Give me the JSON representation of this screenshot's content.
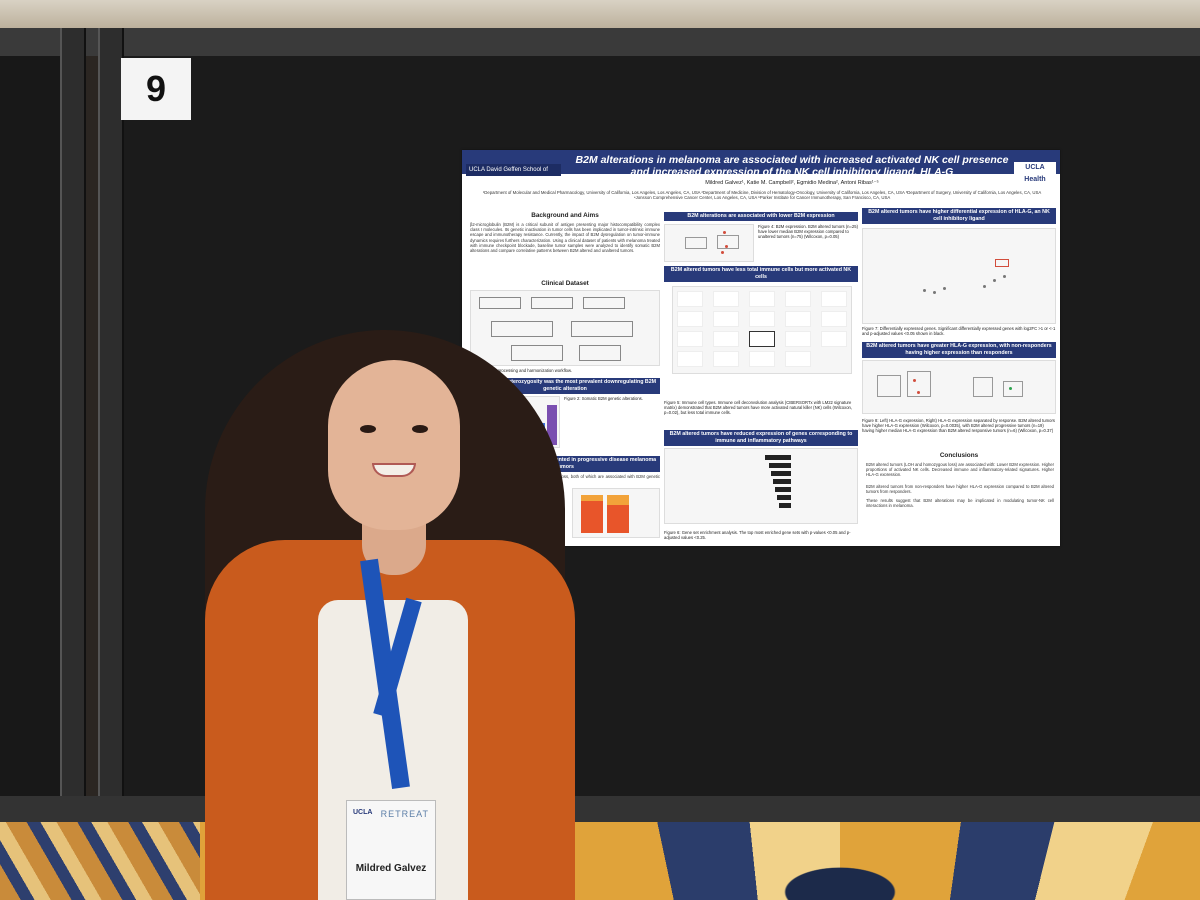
{
  "booth": {
    "number": "9"
  },
  "poster": {
    "title": "B2M alterations in melanoma are associated with increased activated NK cell presence and increased expression of the NK cell inhibitory ligand, HLA-G",
    "logo_left": "UCLA David Geffen School of Medicine",
    "logo_right": "UCLA Health",
    "authors": "Mildred Galvez¹, Katie M. Campbell², Egmidio Medina², Antoni Ribas¹⁻⁵",
    "affiliations": "¹Department of Molecular and Medical Pharmacology, University of California, Los Angeles, Los Angeles, CA, USA ²Department of Medicine, Division of Hematology-Oncology, University of California, Los Angeles, CA, USA ³Department of Surgery, University of California, Los Angeles, CA, USA ⁴Jonsson Comprehensive Cancer Center, Los Angeles, CA, USA ⁵Parker Institute for Cancer Immunotherapy, San Francisco, CA, USA",
    "sections": {
      "background_title": "Background and Aims",
      "background_text": "β2-microglobulin (B2M) is a critical subunit of antigen presenting major histocompatibility complex class I molecules. Its genetic inactivation in tumor cells has been implicated in tumor-intrinsic immune escape and immunotherapy resistance. Currently, the impact of B2M dysregulation on tumor-immune dynamics requires furthers characterization. Using a clinical dataset of patients with melanoma treated with immune checkpoint blockade, baseline tumor samples were analyzed to identify somatic B2M alterations and compare correlative patterns between B2M altered and unaltered tumors.",
      "clinical_title": "Clinical Dataset",
      "fig1_caption": "Figure 1: Data processing and harmonization workflow.",
      "loh_head": "B2M loss of heterozygosity was the most prevalent downregulating B2M genetic alteration",
      "fig2_caption": "Figure 2: Somatic B2M genetic alterations.",
      "progressive_head": "B2M alterations were overrepresented in progressive disease melanoma tumors",
      "progressive_text": "B2M alterations refer to LOH and homozygous loss, both of which are associated with B2M genetic inactivation.",
      "lower_expr_head": "B2M alterations are associated with lower B2M expression",
      "fig4_caption": "Figure 4: B2M expression. B2M altered tumors (n=25) have lower median B2M expression compared to unaltered tumors (n=75) (Wilcoxon, p=0.05)",
      "immune_head": "B2M altered tumors have less total immune cells but more activated NK cells",
      "fig5_caption": "Figure 5: Immune cell types. Immune cell deconvolution analysis (CIBERSORTx with LM22 signature matrix) demonstrated that B2M altered tumors have more activated natural killer (NK) cells (Wilcoxon, p=0.02), but less total immune cells.",
      "pathways_head": "B2M altered tumors have reduced expression of genes corresponding to immune and inflammatory pathways",
      "fig6_caption": "Figure 6: Gene set enrichment analysis. The top most enriched gene sets with p-values <0.05 and p-adjusted values <0.25.",
      "hlag_head": "B2M altered tumors have higher differential expression of HLA-G, an NK cell inhibitory ligand",
      "fig7_caption": "Figure 7: Differentially expressed genes. Significant differentially expressed genes with log2FC >1 or <-1 and p-adjusted values <0.05 shown in black.",
      "nonresp_head": "B2M altered tumors have greater HLA-G expression, with non-responders having higher expression than responders",
      "fig8_caption": "Figure 8: Left) HLA-G expression, Right) HLA-G expression separated by response. B2M altered tumors have higher HLA-G expression (Wilcoxon, p=0.0035), with B2M altered progressive tumors (n=19) having higher median HLA-G expression than B2M altered responsive tumors (n=6) (Wilcoxon, p=0.37)",
      "conclusions_title": "Conclusions",
      "conclusions": [
        "B2M altered tumors (LOH and homozygous loss) are associated with: Lower B2M expression. Higher proportions of activated NK cells. Decreased immune and inflammatory-related signatures. Higher HLA-G expression.",
        "B2M altered tumors from non-responders have higher HLA-G expression compared to B2M altered tumors from responders.",
        "These results suggest that B2M alterations may be implicated in modulating tumor-NK cell interactions in melanoma."
      ]
    }
  },
  "badge": {
    "logo": "UCLA",
    "event": "RETREAT",
    "name": "Mildred Galvez"
  },
  "colors": {
    "poster_header": "#283a7a",
    "cardigan": "#c95b1d",
    "lanyard": "#1e54b8"
  }
}
